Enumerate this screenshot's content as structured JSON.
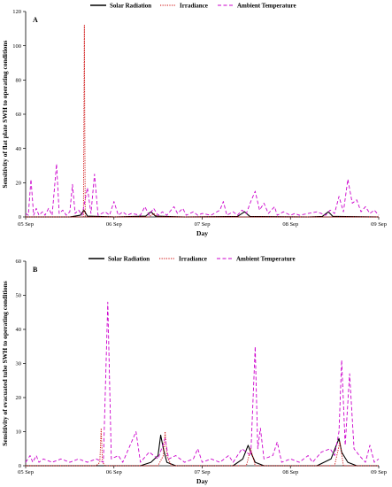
{
  "chart_data": [
    {
      "type": "line",
      "panel_label": "A",
      "ylabel": "Sensitivity of flat plate SWH to operating conditions",
      "xlabel": "Day",
      "ylim": [
        0,
        120
      ],
      "yticks": [
        0,
        20,
        40,
        60,
        80,
        100,
        120
      ],
      "xlim": [
        0,
        4
      ],
      "xticks": [
        {
          "v": 0,
          "label": "05 Sep"
        },
        {
          "v": 1,
          "label": "06 Sep"
        },
        {
          "v": 2,
          "label": "07 Sep"
        },
        {
          "v": 3,
          "label": "08 Sep"
        },
        {
          "v": 4,
          "label": "09 Sep"
        }
      ],
      "legend_position": "top",
      "series": [
        {
          "name": "Solar Radiation",
          "color": "#000000",
          "style": "solid",
          "points": [
            [
              0,
              0
            ],
            [
              0.5,
              0
            ],
            [
              0.62,
              1
            ],
            [
              0.66,
              4
            ],
            [
              0.7,
              0.5
            ],
            [
              1.0,
              0
            ],
            [
              1.36,
              0.5
            ],
            [
              1.42,
              3
            ],
            [
              1.47,
              0.5
            ],
            [
              1.8,
              0
            ],
            [
              2.4,
              0.3
            ],
            [
              2.48,
              3
            ],
            [
              2.54,
              0.3
            ],
            [
              3.2,
              0
            ],
            [
              3.36,
              0.3
            ],
            [
              3.43,
              3
            ],
            [
              3.48,
              0.3
            ],
            [
              4,
              0
            ]
          ]
        },
        {
          "name": "Irradiance",
          "color": "#cc0000",
          "style": "dotted",
          "points": [
            [
              0,
              0
            ],
            [
              0.6,
              0
            ],
            [
              0.655,
              0
            ],
            [
              0.665,
              112
            ],
            [
              0.675,
              0
            ],
            [
              1.4,
              0
            ],
            [
              1.45,
              2
            ],
            [
              1.5,
              0
            ],
            [
              4,
              0
            ]
          ]
        },
        {
          "name": "Ambient Temperature",
          "color": "#cc00cc",
          "style": "dashed",
          "points": [
            [
              0,
              2
            ],
            [
              0.03,
              1
            ],
            [
              0.06,
              22
            ],
            [
              0.09,
              1
            ],
            [
              0.12,
              5
            ],
            [
              0.15,
              1
            ],
            [
              0.19,
              3
            ],
            [
              0.22,
              1
            ],
            [
              0.26,
              5
            ],
            [
              0.3,
              1
            ],
            [
              0.35,
              31
            ],
            [
              0.38,
              2
            ],
            [
              0.42,
              4
            ],
            [
              0.46,
              1
            ],
            [
              0.5,
              3
            ],
            [
              0.53,
              19
            ],
            [
              0.56,
              2
            ],
            [
              0.6,
              4
            ],
            [
              0.64,
              1
            ],
            [
              0.7,
              17
            ],
            [
              0.74,
              2
            ],
            [
              0.78,
              25
            ],
            [
              0.82,
              1
            ],
            [
              0.9,
              3
            ],
            [
              0.95,
              1
            ],
            [
              1.0,
              9
            ],
            [
              1.05,
              1
            ],
            [
              1.1,
              3
            ],
            [
              1.15,
              1
            ],
            [
              1.2,
              2
            ],
            [
              1.3,
              1
            ],
            [
              1.35,
              6
            ],
            [
              1.4,
              1
            ],
            [
              1.45,
              5
            ],
            [
              1.5,
              1
            ],
            [
              1.55,
              3
            ],
            [
              1.6,
              1
            ],
            [
              1.68,
              6
            ],
            [
              1.72,
              2
            ],
            [
              1.78,
              5
            ],
            [
              1.82,
              1
            ],
            [
              1.9,
              3
            ],
            [
              1.95,
              1
            ],
            [
              2.0,
              2
            ],
            [
              2.1,
              1
            ],
            [
              2.2,
              4
            ],
            [
              2.24,
              9
            ],
            [
              2.28,
              1
            ],
            [
              2.35,
              3
            ],
            [
              2.4,
              1
            ],
            [
              2.45,
              4
            ],
            [
              2.5,
              2
            ],
            [
              2.55,
              9
            ],
            [
              2.6,
              15
            ],
            [
              2.65,
              4
            ],
            [
              2.7,
              8
            ],
            [
              2.75,
              2
            ],
            [
              2.82,
              6
            ],
            [
              2.85,
              1
            ],
            [
              2.92,
              3
            ],
            [
              3.0,
              1
            ],
            [
              3.05,
              2
            ],
            [
              3.1,
              1
            ],
            [
              3.2,
              2
            ],
            [
              3.3,
              3
            ],
            [
              3.4,
              1
            ],
            [
              3.45,
              4
            ],
            [
              3.5,
              2
            ],
            [
              3.55,
              12
            ],
            [
              3.6,
              3
            ],
            [
              3.65,
              22
            ],
            [
              3.7,
              8
            ],
            [
              3.75,
              10
            ],
            [
              3.8,
              3
            ],
            [
              3.85,
              6
            ],
            [
              3.9,
              2
            ],
            [
              3.95,
              4
            ],
            [
              4,
              1
            ]
          ]
        }
      ]
    },
    {
      "type": "line",
      "panel_label": "B",
      "ylabel": "Sensitivity of evacuated tube SWH to operating conditions",
      "xlabel": "Day",
      "ylim": [
        0,
        60
      ],
      "yticks": [
        0,
        10,
        20,
        30,
        40,
        50,
        60
      ],
      "xlim": [
        0,
        4
      ],
      "xticks": [
        {
          "v": 0,
          "label": "05 Sep"
        },
        {
          "v": 1,
          "label": "06 Sep"
        },
        {
          "v": 2,
          "label": "07 Sep"
        },
        {
          "v": 3,
          "label": "08 Sep"
        },
        {
          "v": 4,
          "label": "09 Sep"
        }
      ],
      "legend_position": "top",
      "series": [
        {
          "name": "Solar Radiation",
          "color": "#000000",
          "style": "solid",
          "points": [
            [
              0,
              0
            ],
            [
              0.5,
              0
            ],
            [
              0.8,
              0
            ],
            [
              1.3,
              0
            ],
            [
              1.42,
              1
            ],
            [
              1.5,
              3
            ],
            [
              1.53,
              9
            ],
            [
              1.56,
              5
            ],
            [
              1.6,
              1
            ],
            [
              1.7,
              0
            ],
            [
              2.35,
              0
            ],
            [
              2.46,
              2
            ],
            [
              2.52,
              6
            ],
            [
              2.55,
              4
            ],
            [
              2.6,
              1
            ],
            [
              2.7,
              0
            ],
            [
              3.3,
              0
            ],
            [
              3.46,
              2
            ],
            [
              3.55,
              8
            ],
            [
              3.58,
              4
            ],
            [
              3.65,
              1
            ],
            [
              3.75,
              0
            ],
            [
              4,
              0
            ]
          ]
        },
        {
          "name": "Irradiance",
          "color": "#cc0000",
          "style": "dotted",
          "points": [
            [
              0,
              0
            ],
            [
              0.8,
              0
            ],
            [
              0.84,
              1
            ],
            [
              0.855,
              11
            ],
            [
              0.87,
              1
            ],
            [
              0.9,
              0
            ],
            [
              1.5,
              0
            ],
            [
              1.56,
              3
            ],
            [
              1.58,
              10
            ],
            [
              1.6,
              3
            ],
            [
              1.65,
              0
            ],
            [
              2.5,
              0
            ],
            [
              2.55,
              5
            ],
            [
              2.6,
              0
            ],
            [
              3.5,
              0
            ],
            [
              3.56,
              7
            ],
            [
              3.6,
              0
            ],
            [
              4,
              0
            ]
          ]
        },
        {
          "name": "Ambient Temperature",
          "color": "#cc00cc",
          "style": "dashed",
          "points": [
            [
              0,
              1
            ],
            [
              0.05,
              3
            ],
            [
              0.08,
              1
            ],
            [
              0.12,
              3
            ],
            [
              0.15,
              1
            ],
            [
              0.2,
              2
            ],
            [
              0.3,
              1
            ],
            [
              0.4,
              2
            ],
            [
              0.5,
              1
            ],
            [
              0.6,
              2
            ],
            [
              0.7,
              1
            ],
            [
              0.8,
              2
            ],
            [
              0.88,
              1
            ],
            [
              0.93,
              48
            ],
            [
              0.97,
              2
            ],
            [
              1.05,
              3
            ],
            [
              1.1,
              1
            ],
            [
              1.25,
              10
            ],
            [
              1.3,
              1
            ],
            [
              1.4,
              4
            ],
            [
              1.5,
              2
            ],
            [
              1.58,
              8
            ],
            [
              1.62,
              2
            ],
            [
              1.7,
              3
            ],
            [
              1.8,
              1
            ],
            [
              1.9,
              2
            ],
            [
              1.95,
              5
            ],
            [
              2.0,
              1
            ],
            [
              2.1,
              2
            ],
            [
              2.2,
              1
            ],
            [
              2.3,
              3
            ],
            [
              2.35,
              1
            ],
            [
              2.45,
              5
            ],
            [
              2.55,
              3
            ],
            [
              2.6,
              35
            ],
            [
              2.63,
              5
            ],
            [
              2.66,
              11
            ],
            [
              2.7,
              2
            ],
            [
              2.8,
              3
            ],
            [
              2.85,
              7
            ],
            [
              2.9,
              1
            ],
            [
              3.0,
              2
            ],
            [
              3.1,
              1
            ],
            [
              3.2,
              3
            ],
            [
              3.25,
              1
            ],
            [
              3.35,
              4
            ],
            [
              3.45,
              5
            ],
            [
              3.5,
              3
            ],
            [
              3.55,
              10
            ],
            [
              3.58,
              31
            ],
            [
              3.62,
              6
            ],
            [
              3.67,
              27
            ],
            [
              3.72,
              5
            ],
            [
              3.78,
              3
            ],
            [
              3.85,
              1
            ],
            [
              3.9,
              6
            ],
            [
              3.95,
              1
            ],
            [
              4,
              2
            ]
          ]
        }
      ]
    }
  ]
}
